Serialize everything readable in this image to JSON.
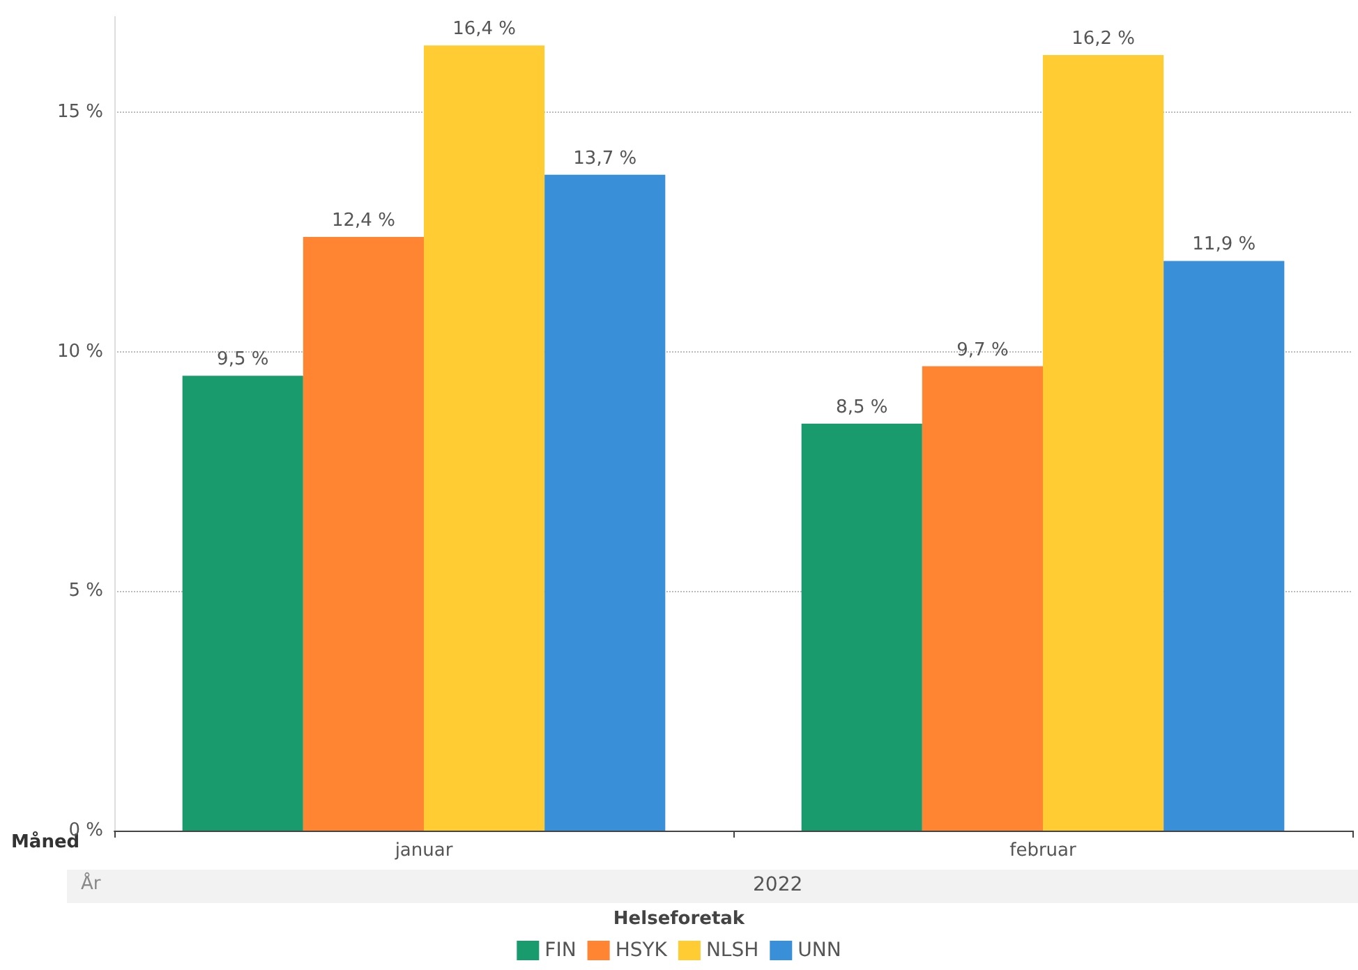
{
  "chart_data": {
    "type": "bar",
    "xlabel": "Måned",
    "legend_title": "Helseforetak",
    "annotations": [
      "År",
      "2022"
    ],
    "categories": [
      "januar",
      "februar"
    ],
    "series": [
      {
        "name": "FIN",
        "color": "#1a9b6e",
        "values": [
          9.5,
          8.5
        ],
        "value_labels": [
          "9,5 %",
          "8,5 %"
        ]
      },
      {
        "name": "HSYK",
        "color": "#ff8533",
        "values": [
          12.4,
          9.7
        ],
        "value_labels": [
          "12,4 %",
          "9,7 %"
        ]
      },
      {
        "name": "NLSH",
        "color": "#ffcc33",
        "values": [
          16.4,
          16.2
        ],
        "value_labels": [
          "16,4 %",
          "16,2 %"
        ]
      },
      {
        "name": "UNN",
        "color": "#3a8fd9",
        "values": [
          13.7,
          11.9
        ],
        "value_labels": [
          "13,7 %",
          "11,9 %"
        ]
      }
    ],
    "ylim": [
      0,
      17
    ],
    "yticks": [
      {
        "value": 0,
        "label": "0 %"
      },
      {
        "value": 5,
        "label": "5 %"
      },
      {
        "value": 10,
        "label": "10 %"
      },
      {
        "value": 15,
        "label": "15 %"
      }
    ],
    "grid": "y",
    "legend": "bottom"
  }
}
